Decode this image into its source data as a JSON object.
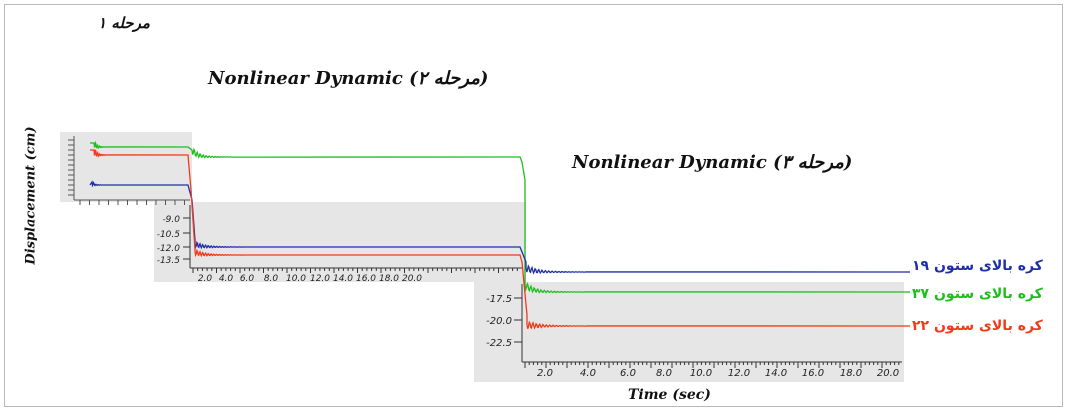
{
  "labels": {
    "stage1": "مرحله ۱",
    "stage2": "Nonlinear Dynamic  (مرحله ۲)",
    "stage3": "Nonlinear Dynamic  (مرحله ۳)",
    "ylabel": "Displacement (cm)",
    "xlabel": "Time (sec)"
  },
  "chart_data": [
    {
      "type": "line",
      "panel": "stage 2",
      "xlabel": "Time (sec)",
      "ylabel": "Displacement (cm)",
      "x_ticks": [
        "2.0",
        "4.0",
        "6.0",
        "8.0",
        "10.0",
        "12.0",
        "14.0",
        "16.0",
        "18.0",
        "20.0"
      ],
      "y_ticks": [
        "-9.0",
        "-10.5",
        "-12.0",
        "-13.5"
      ],
      "xlim": [
        0,
        20.5
      ],
      "ylim": [
        -14.0,
        -7.8
      ],
      "series": [
        {
          "name": "کره بالای ستون ۱۹",
          "color": "#1f2fa8",
          "x": [
            0,
            0.3,
            0.5,
            0.8,
            1,
            1.5,
            2,
            3,
            4,
            20
          ],
          "y": [
            -8.0,
            -10.5,
            -13.0,
            -12.2,
            -12.5,
            -12.3,
            -12.35,
            -12.35,
            -12.35,
            -12.35
          ]
        },
        {
          "name": "کره بالای ستون ۳۷",
          "color": "#1fbe1f",
          "note_value_cm": -4.2
        },
        {
          "name": "کره بالای ستون ۲۲",
          "color": "#f03a1a",
          "x": [
            0,
            0.3,
            0.5,
            0.8,
            1,
            1.5,
            2,
            3,
            4,
            20
          ],
          "y": [
            -8.0,
            -11.0,
            -13.8,
            -12.9,
            -13.2,
            -13.0,
            -13.05,
            -13.05,
            -13.05,
            -13.05
          ]
        }
      ]
    },
    {
      "type": "line",
      "panel": "stage 3",
      "xlabel": "Time (sec)",
      "ylabel": "Displacement (cm)",
      "x_ticks": [
        "2.0",
        "4.0",
        "6.0",
        "8.0",
        "10.0",
        "12.0",
        "14.0",
        "16.0",
        "18.0",
        "20.0"
      ],
      "y_ticks": [
        "-17.5",
        "-20.0",
        "-22.5"
      ],
      "xlim": [
        0,
        20.5
      ],
      "ylim": [
        -23.5,
        -14.5
      ],
      "series": [
        {
          "name": "کره بالای ستون ۱۹",
          "color": "#1f2fa8",
          "level_cm": -15.8
        },
        {
          "name": "کره بالای ستون ۳۷",
          "color": "#1fbe1f",
          "level_cm": -17.2
        },
        {
          "name": "کره بالای ستون ۲۲",
          "color": "#f03a1a",
          "level_cm": -21.0
        }
      ]
    }
  ],
  "legend": [
    {
      "label": "کره بالای ستون ۱۹",
      "color": "#1f2fa8"
    },
    {
      "label": "کره بالای ستون ۳۷",
      "color": "#1fbe1f"
    },
    {
      "label": "کره بالای ستون ۲۲",
      "color": "#f03a1a"
    }
  ]
}
